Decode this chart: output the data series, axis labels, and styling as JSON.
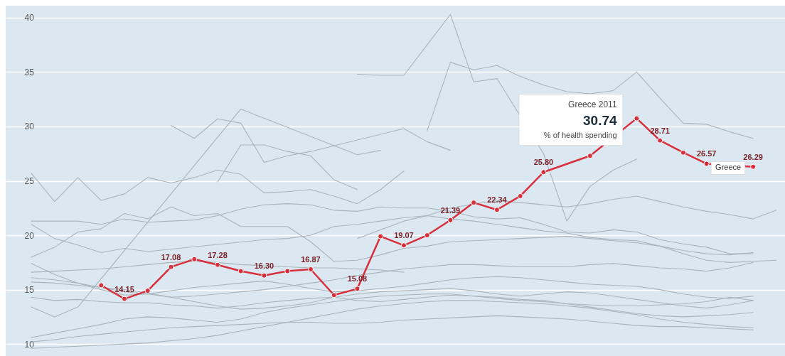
{
  "chart_data": {
    "type": "line",
    "categories": [
      null,
      null,
      null,
      null,
      null,
      null,
      null,
      null,
      null,
      null,
      null,
      null,
      null,
      null,
      null,
      null,
      null,
      null,
      null,
      null,
      null,
      null,
      null,
      null,
      null,
      null,
      null,
      null,
      null,
      null,
      null,
      null,
      null
    ],
    "ylim": [
      8.9,
      41.1
    ],
    "yticks": [
      10,
      15,
      20,
      25,
      30,
      35,
      40
    ],
    "grid": "y",
    "tick_labels": "y",
    "annotations": [
      "Greece 2011",
      "% of health spending"
    ],
    "series": [
      {
        "color": "#a9b4bb",
        "values": [
          null,
          null,
          null,
          null,
          null,
          null,
          null,
          null,
          null,
          null,
          null,
          null,
          null,
          null,
          34.8,
          34.7,
          34.7,
          37.5,
          40.3,
          34.1,
          34.4,
          null,
          27.5,
          21.3,
          24.5,
          26.0,
          27.0,
          null,
          null,
          null,
          null,
          null,
          null
        ]
      },
      {
        "color": "#a9b4bb",
        "values": [
          null,
          null,
          null,
          null,
          null,
          null,
          null,
          null,
          null,
          null,
          null,
          null,
          null,
          null,
          null,
          null,
          null,
          29.6,
          35.9,
          35.2,
          35.6,
          34.6,
          33.8,
          33.2,
          33.0,
          33.3,
          35.0,
          32.6,
          30.3,
          30.2,
          29.5,
          28.9,
          null
        ]
      },
      {
        "color": "#a9b4bb",
        "values": [
          13.4,
          12.5,
          13.4,
          null,
          null,
          null,
          null,
          null,
          null,
          31.6,
          null,
          null,
          null,
          null,
          27.4,
          27.8,
          null,
          null,
          null,
          null,
          null,
          null,
          null,
          null,
          null,
          null,
          null,
          null,
          null,
          null,
          null,
          null,
          null
        ]
      },
      {
        "color": "#a9b4bb",
        "values": [
          null,
          null,
          null,
          null,
          null,
          null,
          30.1,
          28.9,
          30.7,
          30.3,
          26.7,
          27.3,
          27.7,
          null,
          null,
          null,
          29.8,
          28.6,
          27.8,
          null,
          null,
          null,
          null,
          null,
          null,
          null,
          null,
          null,
          null,
          null,
          null,
          null,
          null
        ]
      },
      {
        "color": "#a9b4bb",
        "values": [
          null,
          null,
          null,
          null,
          null,
          null,
          null,
          null,
          24.9,
          28.3,
          28.3,
          27.7,
          27.3,
          25.1,
          24.2,
          null,
          null,
          null,
          null,
          null,
          null,
          null,
          null,
          null,
          null,
          null,
          null,
          null,
          null,
          null,
          null,
          null,
          null
        ]
      },
      {
        "color": "#a9b4bb",
        "values": [
          25.7,
          23.1,
          25.3,
          23.2,
          23.8,
          25.3,
          24.8,
          25.3,
          26.0,
          25.6,
          23.9,
          24.0,
          24.2,
          23.6,
          22.9,
          24.2,
          25.9,
          null,
          null,
          null,
          null,
          null,
          null,
          null,
          null,
          null,
          null,
          null,
          null,
          null,
          null,
          null,
          null
        ]
      },
      {
        "color": "#a9b4bb",
        "values": [
          21.3,
          21.3,
          21.3,
          21.0,
          21.5,
          21.2,
          21.3,
          21.4,
          21.8,
          22.4,
          22.8,
          22.9,
          22.8,
          22.3,
          22.2,
          22.6,
          22.5,
          22.5,
          22.2,
          21.7,
          21.5,
          21.6,
          21.0,
          20.3,
          20.2,
          20.5,
          20.3,
          19.6,
          19.2,
          18.9,
          18.3,
          18.3,
          null
        ]
      },
      {
        "color": "#a9b4bb",
        "values": [
          21.0,
          19.7,
          19.1,
          18.4,
          18.8,
          18.5,
          null,
          null,
          null,
          null,
          19.6,
          19.7,
          20.0,
          20.8,
          21.0,
          21.3,
          21.6,
          21.8,
          21.5,
          21.3,
          21.0,
          20.7,
          20.4,
          20.2,
          19.8,
          19.6,
          19.5,
          19.0,
          18.6,
          18.3,
          18.2,
          18.4,
          null
        ]
      },
      {
        "color": "#a9b4bb",
        "values": [
          18.0,
          18.9,
          20.3,
          20.6,
          22.0,
          21.5,
          22.6,
          21.8,
          22.0,
          20.8,
          20.8,
          20.8,
          19.4,
          17.6,
          17.7,
          18.2,
          18.8,
          19.0,
          19.4,
          19.5,
          19.6,
          19.7,
          19.8,
          19.9,
          19.7,
          19.5,
          19.3,
          19.0,
          18.3,
          17.7,
          17.5,
          17.6,
          17.7
        ]
      },
      {
        "color": "#a9b4bb",
        "values": [
          17.4,
          16.4,
          15.6,
          15.0,
          14.5,
          14.6,
          14.3,
          14.4,
          14.6,
          14.8,
          15.0,
          15.3,
          15.6,
          15.9,
          16.3,
          16.6,
          16.9,
          17.1,
          17.3,
          17.3,
          17.2,
          17.1,
          17.1,
          17.1,
          17.3,
          17.4,
          17.2,
          17.0,
          16.9,
          16.7,
          17.0,
          17.5,
          null
        ]
      },
      {
        "color": "#a9b4bb",
        "values": [
          16.6,
          16.7,
          16.8,
          16.9,
          17.1,
          17.3,
          17.5,
          17.6,
          17.5,
          17.3,
          17.2,
          17.1,
          17.0,
          17.0,
          16.9,
          16.8,
          16.6,
          null,
          null,
          null,
          null,
          null,
          null,
          null,
          null,
          null,
          null,
          null,
          null,
          null,
          null,
          null,
          null
        ]
      },
      {
        "color": "#a9b4bb",
        "values": [
          16.1,
          15.9,
          15.6,
          15.2,
          14.8,
          14.6,
          14.9,
          15.2,
          15.4,
          15.6,
          15.8,
          15.5,
          15.1,
          14.8,
          14.9,
          15.1,
          15.3,
          15.6,
          15.9,
          16.1,
          16.2,
          16.1,
          15.9,
          15.7,
          15.5,
          15.4,
          15.3,
          15.0,
          14.6,
          14.3,
          14.2,
          14.4,
          null
        ]
      },
      {
        "color": "#a9b4bb",
        "values": [
          15.7,
          15.6,
          15.4,
          15.2,
          15.0,
          14.7,
          14.3,
          13.9,
          13.5,
          13.2,
          13.3,
          13.5,
          13.8,
          14.3,
          14.6,
          14.8,
          14.9,
          15.0,
          15.1,
          14.9,
          14.6,
          14.4,
          14.6,
          14.8,
          14.7,
          14.4,
          14.1,
          13.8,
          13.5,
          13.3,
          13.6,
          14.0,
          null
        ]
      },
      {
        "color": "#a9b4bb",
        "values": [
          14.3,
          14.0,
          14.1,
          13.9,
          13.8,
          13.8,
          13.6,
          13.5,
          13.3,
          13.5,
          13.8,
          14.0,
          14.2,
          14.3,
          14.0,
          13.9,
          14.1,
          14.3,
          14.5,
          14.4,
          14.2,
          14.0,
          13.9,
          13.7,
          13.6,
          13.5,
          13.5,
          13.6,
          13.7,
          13.9,
          14.3,
          14.0,
          null
        ]
      },
      {
        "color": "#a9b4bb",
        "values": [
          10.6,
          11.0,
          11.4,
          11.8,
          12.3,
          12.5,
          12.4,
          12.2,
          12.0,
          12.3,
          12.9,
          13.3,
          13.6,
          13.9,
          14.2,
          14.4,
          14.5,
          14.6,
          14.6,
          14.4,
          14.3,
          14.1,
          14.0,
          13.7,
          13.4,
          13.1,
          12.8,
          12.6,
          12.5,
          12.6,
          12.7,
          12.9,
          null
        ]
      },
      {
        "color": "#a9b4bb",
        "values": [
          10.2,
          10.4,
          10.7,
          10.9,
          11.1,
          11.3,
          11.5,
          11.6,
          11.7,
          11.8,
          11.9,
          12.0,
          12.0,
          11.9,
          11.9,
          12.0,
          12.2,
          12.3,
          12.4,
          12.5,
          12.6,
          12.5,
          12.4,
          12.3,
          12.1,
          11.9,
          11.7,
          11.6,
          11.6,
          11.5,
          11.4,
          11.3,
          null
        ]
      },
      {
        "color": "#a9b4bb",
        "values": [
          9.6,
          9.7,
          9.8,
          9.9,
          10.0,
          10.1,
          10.3,
          10.5,
          10.8,
          11.2,
          11.6,
          12.0,
          12.4,
          12.8,
          13.2,
          13.5,
          13.7,
          13.9,
          14.0,
          14.0,
          13.9,
          13.8,
          13.7,
          13.5,
          13.3,
          13.0,
          12.7,
          12.3,
          12.0,
          11.8,
          11.6,
          11.5,
          null
        ]
      },
      {
        "color": "#a9b4bb",
        "values": [
          null,
          null,
          null,
          null,
          null,
          null,
          null,
          null,
          null,
          null,
          null,
          null,
          null,
          null,
          19.7,
          20.5,
          21.3,
          21.8,
          22.5,
          null,
          23.2,
          23.0,
          22.8,
          22.6,
          22.9,
          23.3,
          23.6,
          23.1,
          22.6,
          22.2,
          21.9,
          21.5,
          22.3
        ]
      },
      {
        "name": "Greece",
        "color": "#d7303c",
        "marker": "circle",
        "values": [
          null,
          null,
          null,
          15.4,
          14.15,
          14.9,
          17.08,
          17.8,
          17.28,
          16.7,
          16.3,
          16.7,
          16.87,
          14.5,
          15.08,
          19.9,
          19.07,
          20.0,
          21.39,
          23.0,
          22.34,
          23.6,
          25.8,
          null,
          27.3,
          null,
          30.74,
          28.71,
          27.6,
          26.57,
          null,
          26.29,
          null
        ],
        "value_labels": [
          null,
          null,
          null,
          null,
          "14.15",
          null,
          "17.08",
          null,
          "17.28",
          null,
          "16.30",
          null,
          "16.87",
          null,
          "15.08",
          null,
          "19.07",
          null,
          "21.39",
          null,
          "22.34",
          null,
          "25.80",
          null,
          null,
          null,
          "30.74",
          "28.71",
          null,
          "26.57",
          null,
          "26.29",
          null
        ]
      }
    ]
  }
}
